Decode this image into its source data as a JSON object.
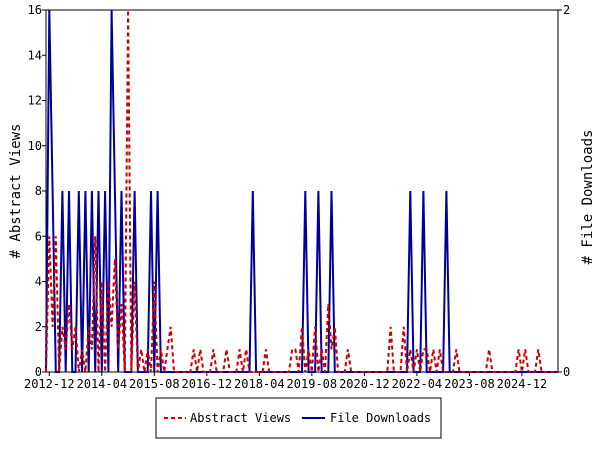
{
  "chart_data": {
    "type": "line",
    "xlabel": "",
    "ylabel_left": "# Abstract Views",
    "ylabel_right": "# File Downloads",
    "ylim_left": [
      0,
      16
    ],
    "ylim_right": [
      0,
      2
    ],
    "yticks_left": [
      0,
      2,
      4,
      6,
      8,
      10,
      12,
      14,
      16
    ],
    "yticks_right": [
      0,
      2
    ],
    "xlim": [
      "2012-11",
      "2025-11"
    ],
    "xticks": [
      "2012-12",
      "2014-04",
      "2015-08",
      "2016-12",
      "2018-04",
      "2019-08",
      "2020-12",
      "2022-04",
      "2023-08",
      "2024-12"
    ],
    "legend": "bottom-center",
    "grid": false,
    "series": [
      {
        "name": "Abstract Views",
        "axis": "left",
        "color": "#cc0000",
        "style": "dashed",
        "points": [
          [
            "2012-11",
            0
          ],
          [
            "2012-12",
            6
          ],
          [
            "2013-01",
            2
          ],
          [
            "2013-02",
            6
          ],
          [
            "2013-03",
            0
          ],
          [
            "2013-04",
            2
          ],
          [
            "2013-05",
            1
          ],
          [
            "2013-06",
            3
          ],
          [
            "2013-07",
            1
          ],
          [
            "2013-08",
            2
          ],
          [
            "2013-09",
            0
          ],
          [
            "2013-10",
            1
          ],
          [
            "2013-11",
            0
          ],
          [
            "2013-12",
            2
          ],
          [
            "2014-01",
            1
          ],
          [
            "2014-02",
            6
          ],
          [
            "2014-03",
            0
          ],
          [
            "2014-04",
            4
          ],
          [
            "2014-05",
            0
          ],
          [
            "2014-06",
            4
          ],
          [
            "2014-07",
            2
          ],
          [
            "2014-08",
            5
          ],
          [
            "2014-09",
            1
          ],
          [
            "2014-10",
            3
          ],
          [
            "2014-11",
            0
          ],
          [
            "2014-12",
            16
          ],
          [
            "2015-01",
            0
          ],
          [
            "2015-02",
            4
          ],
          [
            "2015-03",
            0
          ],
          [
            "2015-04",
            1
          ],
          [
            "2015-05",
            0
          ],
          [
            "2015-06",
            1
          ],
          [
            "2015-07",
            0
          ],
          [
            "2015-08",
            4
          ],
          [
            "2015-09",
            0
          ],
          [
            "2015-10",
            1
          ],
          [
            "2015-11",
            0
          ],
          [
            "2015-12",
            1
          ],
          [
            "2016-01",
            2
          ],
          [
            "2016-02",
            0
          ],
          [
            "2016-07",
            0
          ],
          [
            "2016-08",
            1
          ],
          [
            "2016-09",
            0
          ],
          [
            "2016-10",
            1
          ],
          [
            "2016-11",
            0
          ],
          [
            "2017-01",
            0
          ],
          [
            "2017-02",
            1
          ],
          [
            "2017-03",
            0
          ],
          [
            "2017-05",
            0
          ],
          [
            "2017-06",
            1
          ],
          [
            "2017-07",
            0
          ],
          [
            "2017-09",
            0
          ],
          [
            "2017-10",
            1
          ],
          [
            "2017-11",
            0
          ],
          [
            "2017-12",
            1
          ],
          [
            "2018-01",
            0
          ],
          [
            "2018-05",
            0
          ],
          [
            "2018-06",
            1
          ],
          [
            "2018-07",
            0
          ],
          [
            "2019-01",
            0
          ],
          [
            "2019-02",
            1
          ],
          [
            "2019-03",
            1
          ],
          [
            "2019-04",
            0
          ],
          [
            "2019-05",
            2
          ],
          [
            "2019-06",
            0
          ],
          [
            "2019-07",
            1
          ],
          [
            "2019-08",
            0
          ],
          [
            "2019-09",
            2
          ],
          [
            "2019-10",
            0
          ],
          [
            "2019-11",
            1
          ],
          [
            "2019-12",
            0
          ],
          [
            "2020-01",
            3
          ],
          [
            "2020-02",
            1
          ],
          [
            "2020-03",
            2
          ],
          [
            "2020-04",
            0
          ],
          [
            "2020-06",
            0
          ],
          [
            "2020-07",
            1
          ],
          [
            "2020-08",
            0
          ],
          [
            "2021-07",
            0
          ],
          [
            "2021-08",
            2
          ],
          [
            "2021-09",
            0
          ],
          [
            "2021-11",
            0
          ],
          [
            "2021-12",
            2
          ],
          [
            "2022-01",
            0
          ],
          [
            "2022-02",
            1
          ],
          [
            "2022-03",
            0
          ],
          [
            "2022-04",
            1
          ],
          [
            "2022-05",
            0
          ],
          [
            "2022-06",
            1
          ],
          [
            "2022-07",
            1
          ],
          [
            "2022-08",
            0
          ],
          [
            "2022-09",
            1
          ],
          [
            "2022-10",
            0
          ],
          [
            "2022-11",
            1
          ],
          [
            "2022-12",
            0
          ],
          [
            "2023-03",
            0
          ],
          [
            "2023-04",
            1
          ],
          [
            "2023-05",
            0
          ],
          [
            "2024-01",
            0
          ],
          [
            "2024-02",
            1
          ],
          [
            "2024-03",
            0
          ],
          [
            "2024-10",
            0
          ],
          [
            "2024-11",
            1
          ],
          [
            "2024-12",
            0
          ],
          [
            "2025-01",
            1
          ],
          [
            "2025-02",
            0
          ],
          [
            "2025-04",
            0
          ],
          [
            "2025-05",
            1
          ],
          [
            "2025-06",
            0
          ],
          [
            "2025-11",
            0
          ]
        ]
      },
      {
        "name": "File Downloads",
        "axis": "right",
        "color": "#000099",
        "style": "solid",
        "points": [
          [
            "2012-11",
            0
          ],
          [
            "2012-12",
            2
          ],
          [
            "2013-01",
            1
          ],
          [
            "2013-02",
            0
          ],
          [
            "2013-03",
            0
          ],
          [
            "2013-04",
            1
          ],
          [
            "2013-05",
            0
          ],
          [
            "2013-06",
            1
          ],
          [
            "2013-07",
            0
          ],
          [
            "2013-08",
            0
          ],
          [
            "2013-09",
            1
          ],
          [
            "2013-10",
            0
          ],
          [
            "2013-11",
            1
          ],
          [
            "2013-12",
            0
          ],
          [
            "2014-01",
            1
          ],
          [
            "2014-02",
            0
          ],
          [
            "2014-03",
            1
          ],
          [
            "2014-04",
            0
          ],
          [
            "2014-05",
            1
          ],
          [
            "2014-06",
            0
          ],
          [
            "2014-07",
            2
          ],
          [
            "2014-08",
            1
          ],
          [
            "2014-09",
            0
          ],
          [
            "2014-10",
            1
          ],
          [
            "2014-11",
            0
          ],
          [
            "2014-12",
            0
          ],
          [
            "2015-01",
            0
          ],
          [
            "2015-02",
            1
          ],
          [
            "2015-03",
            0
          ],
          [
            "2015-04",
            0
          ],
          [
            "2015-05",
            0
          ],
          [
            "2015-06",
            0
          ],
          [
            "2015-07",
            1
          ],
          [
            "2015-08",
            0
          ],
          [
            "2015-09",
            1
          ],
          [
            "2015-10",
            0
          ],
          [
            "2015-11",
            0
          ],
          [
            "2018-01",
            0
          ],
          [
            "2018-02",
            1
          ],
          [
            "2018-03",
            0
          ],
          [
            "2019-05",
            0
          ],
          [
            "2019-06",
            1
          ],
          [
            "2019-07",
            0
          ],
          [
            "2019-09",
            0
          ],
          [
            "2019-10",
            1
          ],
          [
            "2019-11",
            0
          ],
          [
            "2020-01",
            0
          ],
          [
            "2020-02",
            1
          ],
          [
            "2020-03",
            0
          ],
          [
            "2022-01",
            0
          ],
          [
            "2022-02",
            1
          ],
          [
            "2022-03",
            0
          ],
          [
            "2022-05",
            0
          ],
          [
            "2022-06",
            1
          ],
          [
            "2022-07",
            0
          ],
          [
            "2022-12",
            0
          ],
          [
            "2023-01",
            1
          ],
          [
            "2023-02",
            0
          ],
          [
            "2025-11",
            0
          ]
        ]
      }
    ]
  }
}
